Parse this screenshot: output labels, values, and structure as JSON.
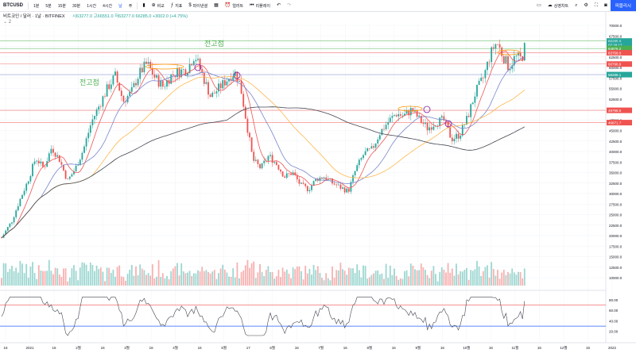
{
  "toolbar": {
    "symbol": "BTCUSD",
    "intervals": [
      "1분",
      "5분",
      "15분",
      "30분",
      "1시간",
      "4시간",
      "날",
      "주"
    ],
    "compare": "비교",
    "indicators": "지표",
    "financials": "파이낸셜",
    "alert": "얼러트",
    "replay": "리플레이",
    "save": "상영차트",
    "publish": "퍼블리시"
  },
  "legend": {
    "title": "비트코인 / 달러 · 1날 · BITFINEX",
    "ohlc": "시63277.0  고66551.0  저63277.0  66285.0  +3002.0 (+4.75%)",
    "collapsed_count": "2"
  },
  "annotations": {
    "label_left": "전고점",
    "label_top": "전고점"
  },
  "colors": {
    "up": "#26a69a",
    "down": "#ef5350",
    "ma_fast": "#f05454",
    "ma_mid": "#7986cb",
    "ma_slow": "#ffb74d",
    "ma_long": "#434651",
    "accent": "#2962ff"
  },
  "price_labels": [
    {
      "text": "66285.0",
      "color": "#26a69a",
      "price": 66285
    },
    {
      "text": "07:28:17",
      "color": "#26a69a",
      "price": 65350
    },
    {
      "text": "64876.2",
      "color": "#4caf50",
      "price": 64500
    },
    {
      "text": "63758.0",
      "color": "#ef5350",
      "price": 63500
    },
    {
      "text": "60796.9",
      "color": "#ef5350",
      "price": 60800
    },
    {
      "text": "58288.1",
      "color": "#26a69a",
      "price": 58288
    },
    {
      "text": "49798.6",
      "color": "#ef5350",
      "price": 49798
    },
    {
      "text": "46871.7",
      "color": "#ef5350",
      "price": 46871
    }
  ],
  "chart_data": {
    "type": "candlestick",
    "price_ticks": [
      "70000.0",
      "67500.0",
      "65000.0",
      "62500.0",
      "60000.0",
      "57500.0",
      "55000.0",
      "52500.0",
      "50000.0",
      "47500.0",
      "45000.0",
      "42500.0",
      "40000.0",
      "37500.0",
      "35000.0",
      "32500.0",
      "30000.0",
      "27500.0",
      "25000.0",
      "22500.0",
      "20000.0",
      "17500.0",
      "15000.0",
      "12500.0",
      "10000.0"
    ],
    "rsi_ticks": [
      "80.00",
      "60.00",
      "40.00",
      "20.00"
    ],
    "date_ticks": [
      "16",
      "2021",
      "16",
      "2월",
      "16",
      "3월",
      "16",
      "4월",
      "16",
      "5월",
      "17",
      "6월",
      "16",
      "7월",
      "16",
      "8월",
      "16",
      "9월",
      "16",
      "10월",
      "16",
      "11월",
      "16",
      "12월",
      "16",
      "2022"
    ],
    "ylim": [
      10000,
      70000
    ],
    "rsi_levels": [
      70,
      30
    ]
  }
}
